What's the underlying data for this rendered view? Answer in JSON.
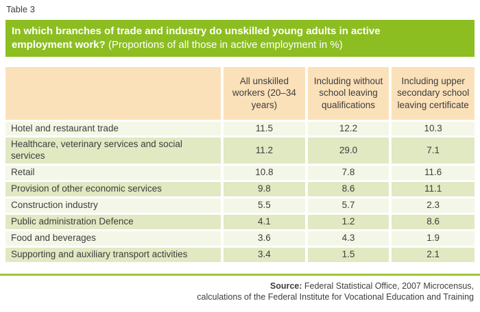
{
  "chart_data": {
    "type": "table",
    "table_number": "Table 3",
    "title": "In which branches of trade and industry do unskilled young adults in active employment work?",
    "subtitle": "(Proportions of all those in active employment in %)",
    "columns": [
      "All unskilled workers (20–34 years)",
      "Including without school leaving qualifications",
      "Including upper secondary school leaving certificate"
    ],
    "rows": [
      {
        "branch": "Hotel and restaurant trade",
        "values": [
          "11.5",
          "12.2",
          "10.3"
        ]
      },
      {
        "branch": "Healthcare, veterinary services and social services",
        "values": [
          "11.2",
          "29.0",
          "7.1"
        ]
      },
      {
        "branch": "Retail",
        "values": [
          "10.8",
          "7.8",
          "11.6"
        ]
      },
      {
        "branch": "Provision of other economic services",
        "values": [
          "9.8",
          "8.6",
          "11.1"
        ]
      },
      {
        "branch": "Construction industry",
        "values": [
          "5.5",
          "5.7",
          "2.3"
        ]
      },
      {
        "branch": "Public administration Defence",
        "values": [
          "4.1",
          "1.2",
          "8.6"
        ]
      },
      {
        "branch": "Food and beverages",
        "values": [
          "3.6",
          "4.3",
          "1.9"
        ]
      },
      {
        "branch": "Supporting and auxiliary transport activities",
        "values": [
          "3.4",
          "1.5",
          "2.1"
        ]
      }
    ],
    "source": {
      "label": "Source:",
      "line1": "Federal Statistical Office, 2007 Microcensus,",
      "line2": "calculations of the Federal Institute for Vocational Education and Training"
    },
    "colors": {
      "title_bar_green": "#8cbe21",
      "header_peach": "#fbe1ba",
      "row_light": "#f4f7e7",
      "row_green": "#e0e9c2",
      "footer_rule_green": "#9dc733",
      "text": "#3d3d3c"
    },
    "legend_position": "none",
    "grid": false
  }
}
